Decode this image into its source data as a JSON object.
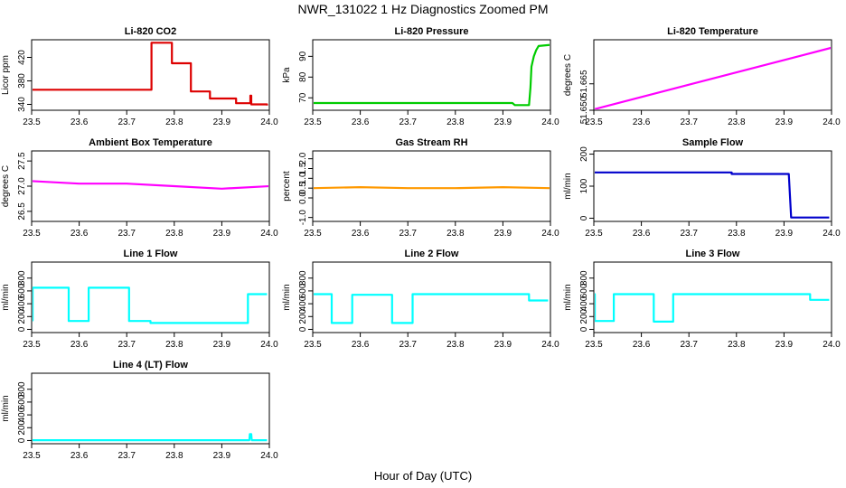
{
  "figure": {
    "title": "NWR_131022  1 Hz Diagnostics Zoomed PM",
    "xlabel": "Hour of Day (UTC)"
  },
  "chart_data": [
    {
      "type": "line",
      "title": "Li-820 CO2",
      "ylabel": "Licor ppm",
      "color": "#dd0000",
      "xlim": [
        23.5,
        24.0
      ],
      "ylim": [
        330,
        450
      ],
      "x_ticks": [
        "23.5",
        "23.6",
        "23.7",
        "23.8",
        "23.9",
        "24.0"
      ],
      "y_ticks": [
        "340",
        "380",
        "420"
      ],
      "series": [
        {
          "x": [
            23.5,
            23.752,
            23.752,
            23.795,
            23.795,
            23.835,
            23.835,
            23.875,
            23.875,
            23.93,
            23.93,
            23.96,
            23.96,
            23.962,
            23.962,
            23.995,
            23.995
          ],
          "y": [
            365,
            365,
            445,
            445,
            410,
            410,
            362,
            362,
            350,
            350,
            342,
            342,
            355,
            355,
            340,
            340,
            338
          ]
        }
      ]
    },
    {
      "type": "line",
      "title": "Li-820 Pressure",
      "ylabel": "kPa",
      "color": "#00cc00",
      "xlim": [
        23.5,
        24.0
      ],
      "ylim": [
        64,
        98
      ],
      "x_ticks": [
        "23.5",
        "23.6",
        "23.7",
        "23.8",
        "23.9",
        "24.0"
      ],
      "y_ticks": [
        "70",
        "80",
        "90"
      ],
      "series": [
        {
          "x": [
            23.5,
            23.92,
            23.925,
            23.955,
            23.958,
            23.96,
            23.965,
            23.97,
            23.975,
            24.0
          ],
          "y": [
            67.5,
            67.5,
            66.5,
            66.5,
            75,
            85,
            90,
            93,
            95,
            95.5
          ]
        }
      ]
    },
    {
      "type": "line",
      "title": "Li-820 Temperature",
      "ylabel": "degrees C",
      "color": "#ff00ff",
      "xlim": [
        23.5,
        24.0
      ],
      "ylim": [
        51.65,
        51.69
      ],
      "x_ticks": [
        "23.5",
        "23.6",
        "23.7",
        "23.8",
        "23.9",
        "24.0"
      ],
      "y_ticks": [
        "51.650",
        "51.665"
      ],
      "series": [
        {
          "x": [
            23.5,
            24.0
          ],
          "y": [
            51.6505,
            51.6855
          ]
        }
      ]
    },
    {
      "type": "line",
      "title": "Ambient Box Temperature",
      "ylabel": "degrees C",
      "color": "#ff00ff",
      "xlim": [
        23.5,
        24.0
      ],
      "ylim": [
        26.3,
        27.7
      ],
      "x_ticks": [
        "23.5",
        "23.6",
        "23.7",
        "23.8",
        "23.9",
        "24.0"
      ],
      "y_ticks": [
        "26.5",
        "27.0",
        "27.5"
      ],
      "series": [
        {
          "x": [
            23.5,
            23.6,
            23.7,
            23.8,
            23.9,
            24.0
          ],
          "y": [
            27.1,
            27.05,
            27.05,
            27.0,
            26.95,
            27.0
          ]
        }
      ]
    },
    {
      "type": "line",
      "title": "Gas Stream RH",
      "ylabel": "percent",
      "color": "#ff9900",
      "xlim": [
        23.5,
        24.0
      ],
      "ylim": [
        -1.2,
        2.4
      ],
      "x_ticks": [
        "23.5",
        "23.6",
        "23.7",
        "23.8",
        "23.9",
        "24.0"
      ],
      "y_ticks": [
        "-1.0",
        "0.0",
        "0.5",
        "1.0",
        "1.5",
        "2.0"
      ],
      "series": [
        {
          "x": [
            23.5,
            23.6,
            23.7,
            23.8,
            23.9,
            24.0
          ],
          "y": [
            0.5,
            0.55,
            0.5,
            0.5,
            0.55,
            0.5
          ]
        }
      ]
    },
    {
      "type": "line",
      "title": "Sample Flow",
      "ylabel": "ml/min",
      "color": "#0000cc",
      "xlim": [
        23.5,
        24.0
      ],
      "ylim": [
        -10,
        210
      ],
      "x_ticks": [
        "23.5",
        "23.6",
        "23.7",
        "23.8",
        "23.9",
        "24.0"
      ],
      "y_ticks": [
        "0",
        "100",
        "200"
      ],
      "series": [
        {
          "x": [
            23.5,
            23.79,
            23.79,
            23.91,
            23.915,
            23.995
          ],
          "y": [
            143,
            143,
            138,
            138,
            2,
            2
          ]
        }
      ]
    },
    {
      "type": "line",
      "title": "Line 1 Flow",
      "ylabel": "ml/min",
      "color": "#00ffff",
      "xlim": [
        23.5,
        24.0
      ],
      "ylim": [
        -50,
        1050
      ],
      "x_ticks": [
        "23.5",
        "23.6",
        "23.7",
        "23.8",
        "23.9",
        "24.0"
      ],
      "y_ticks": [
        "0",
        "200",
        "400",
        "600",
        "800"
      ],
      "series": [
        {
          "x": [
            23.5,
            23.502,
            23.502,
            23.578,
            23.578,
            23.62,
            23.62,
            23.705,
            23.705,
            23.75,
            23.75,
            23.955,
            23.955,
            23.995
          ],
          "y": [
            140,
            140,
            650,
            650,
            130,
            130,
            650,
            650,
            130,
            130,
            100,
            100,
            550,
            550
          ]
        }
      ]
    },
    {
      "type": "line",
      "title": "Line 2 Flow",
      "ylabel": "ml/min",
      "color": "#00ffff",
      "xlim": [
        23.5,
        24.0
      ],
      "ylim": [
        -50,
        1050
      ],
      "x_ticks": [
        "23.5",
        "23.6",
        "23.7",
        "23.8",
        "23.9",
        "24.0"
      ],
      "y_ticks": [
        "0",
        "200",
        "400",
        "600",
        "800"
      ],
      "series": [
        {
          "x": [
            23.5,
            23.54,
            23.54,
            23.583,
            23.583,
            23.667,
            23.667,
            23.71,
            23.71,
            23.955,
            23.955,
            23.995
          ],
          "y": [
            550,
            550,
            100,
            100,
            540,
            540,
            100,
            100,
            550,
            550,
            450,
            450
          ]
        }
      ]
    },
    {
      "type": "line",
      "title": "Line 3 Flow",
      "ylabel": "ml/min",
      "color": "#00ffff",
      "xlim": [
        23.5,
        24.0
      ],
      "ylim": [
        -50,
        1050
      ],
      "x_ticks": [
        "23.5",
        "23.6",
        "23.7",
        "23.8",
        "23.9",
        "24.0"
      ],
      "y_ticks": [
        "0",
        "200",
        "400",
        "600",
        "800"
      ],
      "series": [
        {
          "x": [
            23.5,
            23.502,
            23.502,
            23.542,
            23.542,
            23.626,
            23.626,
            23.667,
            23.667,
            23.955,
            23.955,
            23.995
          ],
          "y": [
            550,
            550,
            130,
            130,
            550,
            550,
            120,
            120,
            550,
            550,
            460,
            460
          ]
        }
      ]
    },
    {
      "type": "line",
      "title": "Line 4 (LT) Flow",
      "ylabel": "ml/min",
      "color": "#00ffff",
      "xlim": [
        23.5,
        24.0
      ],
      "ylim": [
        -50,
        1050
      ],
      "x_ticks": [
        "23.5",
        "23.6",
        "23.7",
        "23.8",
        "23.9",
        "24.0"
      ],
      "y_ticks": [
        "0",
        "200",
        "400",
        "600",
        "800"
      ],
      "series": [
        {
          "x": [
            23.5,
            23.958,
            23.959,
            23.962,
            23.963,
            23.995
          ],
          "y": [
            5,
            5,
            100,
            100,
            5,
            5
          ]
        }
      ]
    }
  ]
}
